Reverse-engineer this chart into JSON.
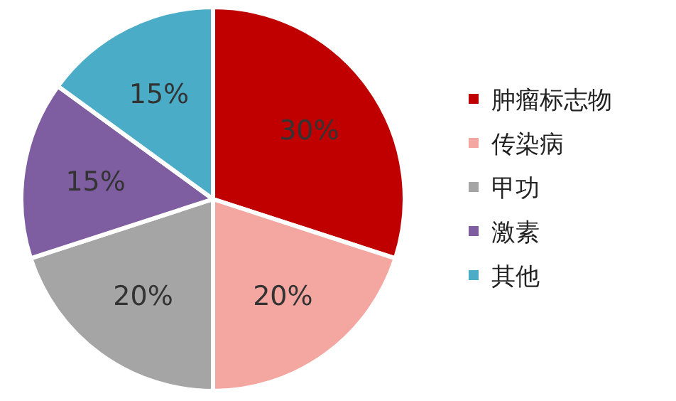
{
  "chart_data": {
    "type": "pie",
    "categories": [
      "肿瘤标志物",
      "传染病",
      "甲功",
      "激素",
      "其他"
    ],
    "values": [
      30,
      20,
      20,
      15,
      15
    ],
    "value_labels": [
      "30%",
      "20%",
      "20%",
      "15%",
      "15%"
    ],
    "colors": [
      "#c00000",
      "#f4a6a0",
      "#a5a5a5",
      "#7e5ea0",
      "#4aacc6"
    ],
    "legend": "right"
  }
}
